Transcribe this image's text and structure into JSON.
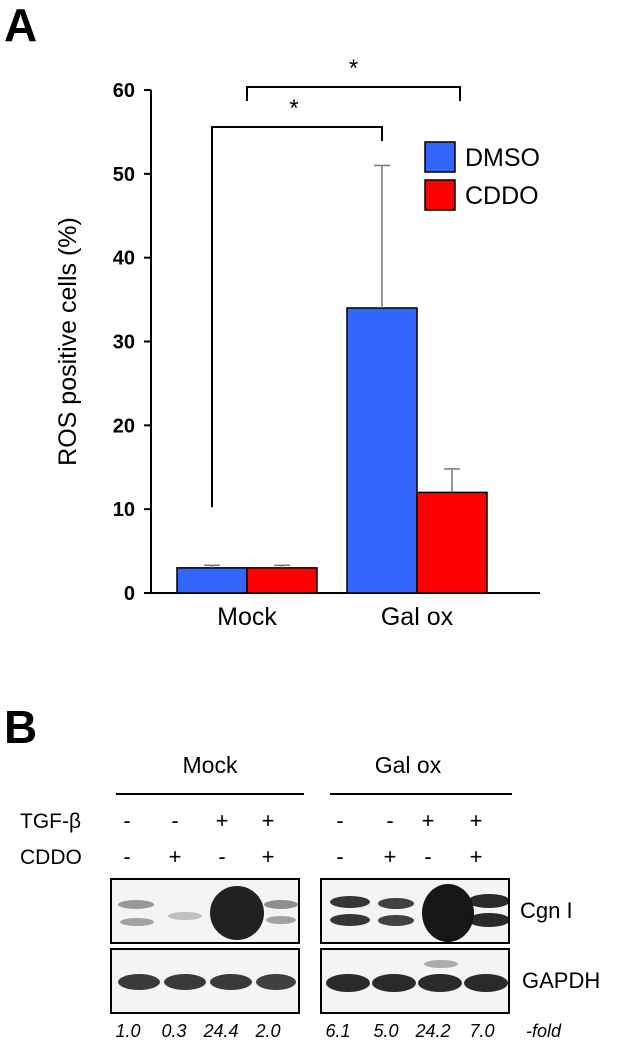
{
  "panels": {
    "a": "A",
    "b": "B"
  },
  "chart_data": {
    "type": "bar",
    "categories": [
      "Mock",
      "Gal ox"
    ],
    "series": [
      {
        "name": "DMSO",
        "color": "#3366ff",
        "values": [
          3,
          34
        ],
        "errors": [
          0.3,
          17
        ]
      },
      {
        "name": "CDDO",
        "color": "#ff0000",
        "values": [
          3,
          12
        ],
        "errors": [
          0.3,
          2.8
        ]
      }
    ],
    "ylabel": "ROS positive cells (%)",
    "ylim": [
      0,
      60
    ],
    "yticks": [
      "0",
      "10",
      "20",
      "30",
      "40",
      "50",
      "60"
    ],
    "legend": "top-right",
    "grid": false,
    "significance": [
      {
        "from": "Mock DMSO",
        "to": "Gal ox DMSO",
        "label": "*"
      },
      {
        "from": "Mock",
        "to": "Gal ox",
        "label": "*"
      }
    ]
  },
  "blot": {
    "groups": [
      "Mock",
      "Gal ox"
    ],
    "rows": [
      {
        "label": "TGF-β",
        "signs": [
          "-",
          "-",
          "+",
          "+",
          "-",
          "-",
          "+",
          "+"
        ]
      },
      {
        "label": "CDDO",
        "signs": [
          "-",
          "+",
          "-",
          "+",
          "-",
          "+",
          "-",
          "+"
        ]
      }
    ],
    "bands": [
      "Cgn I",
      "GAPDH"
    ],
    "fold_values": [
      "1.0",
      "0.3",
      "24.4",
      "2.0",
      "6.1",
      "5.0",
      "24.2",
      "7.0"
    ],
    "fold_suffix": "-fold"
  }
}
